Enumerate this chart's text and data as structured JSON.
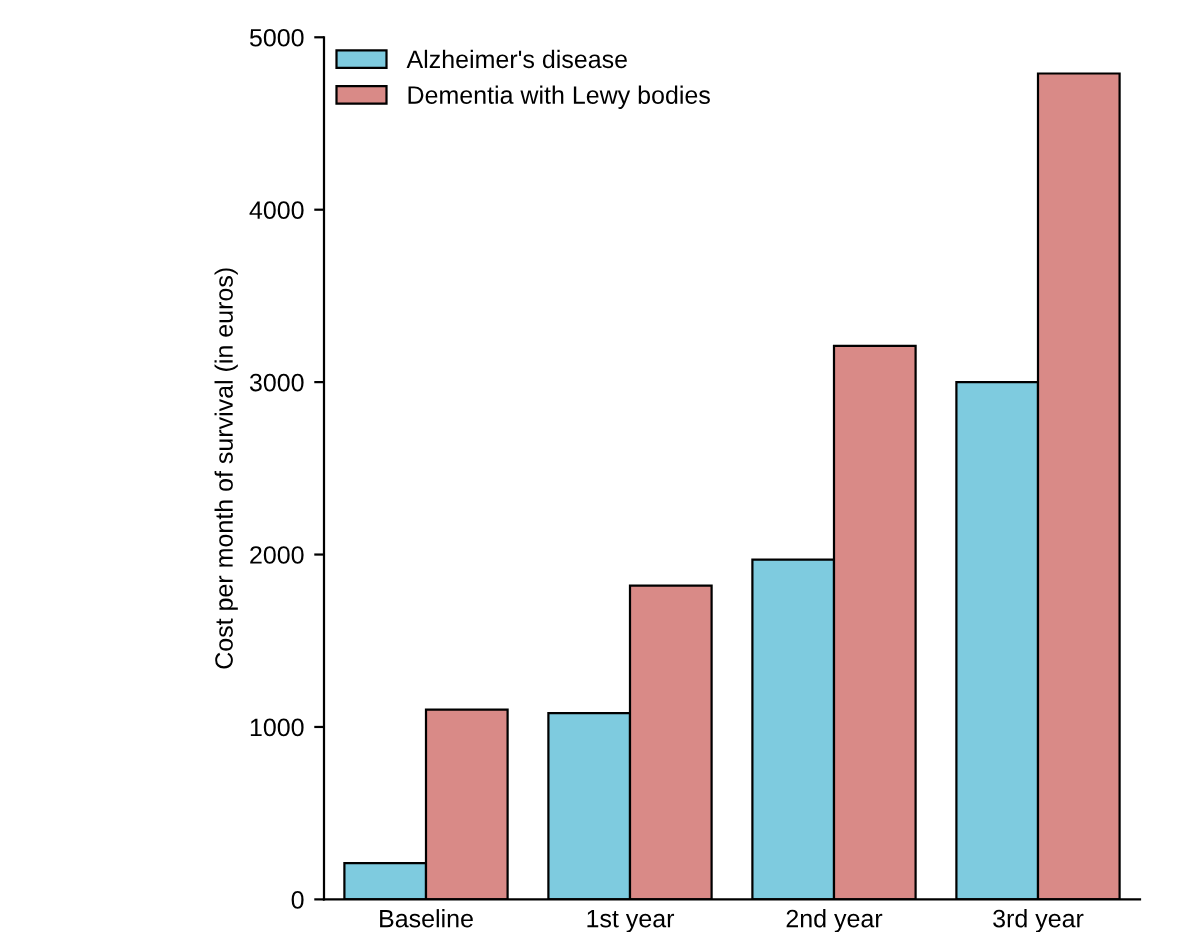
{
  "chart_data": {
    "type": "bar",
    "ylabel": "Cost per month of survival (in euros)",
    "categories": [
      "Baseline",
      "1st year",
      "2nd year",
      "3rd year"
    ],
    "series": [
      {
        "name": "Alzheimer's disease",
        "color": "#7ecbdf",
        "values": [
          210,
          1080,
          1970,
          3000
        ]
      },
      {
        "name": "Dementia with Lewy bodies",
        "color": "#d98a87",
        "values": [
          1100,
          1820,
          3210,
          4790
        ]
      }
    ],
    "ylim": [
      0,
      5000
    ],
    "yticks": [
      0,
      1000,
      2000,
      3000,
      4000,
      5000
    ],
    "grid": false,
    "legend": "top left"
  }
}
